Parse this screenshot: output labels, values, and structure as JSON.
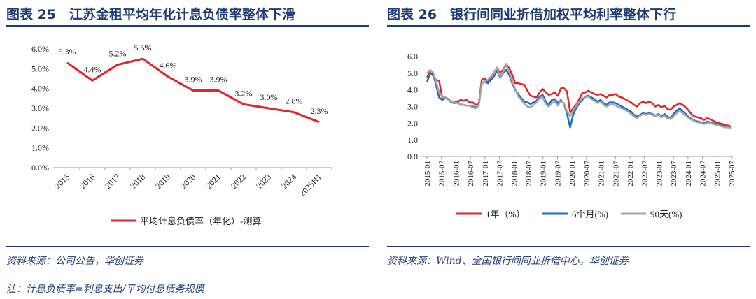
{
  "left": {
    "title": "图表 25　江苏金租平均年化计息负债率整体下滑",
    "source": "资料来源：公司公告，华创证券",
    "note": "注：计息负债率=利息支出/平均付息债务规模"
  },
  "right": {
    "title": "图表 26　银行间同业折借加权平均利率整体下行",
    "source": "资料来源：Wind、全国银行间同业折借中心，华创证券"
  },
  "colors": {
    "red": "#e3242b",
    "blue": "#1f6fc1",
    "gray": "#a5a5a5",
    "navy": "#1f3a75"
  },
  "chart_data": [
    {
      "type": "line",
      "categories": [
        "2015",
        "2016",
        "2017",
        "2018",
        "2019",
        "2020",
        "2021",
        "2022",
        "2023",
        "2024",
        "2025H1"
      ],
      "series": [
        {
          "name": "平均计息负债率（年化）-测算",
          "values": [
            5.3,
            4.4,
            5.2,
            5.5,
            4.6,
            3.9,
            3.9,
            3.2,
            3.0,
            2.8,
            2.3
          ],
          "labels": [
            "5.3%",
            "4.4%",
            "5.2%",
            "5.5%",
            "4.6%",
            "3.9%",
            "3.9%",
            "3.2%",
            "3.0%",
            "2.8%",
            "2.3%"
          ]
        }
      ],
      "ylim": [
        0,
        6
      ],
      "yticks": [
        "0.0%",
        "1.0%",
        "2.0%",
        "3.0%",
        "4.0%",
        "5.0%",
        "6.0%"
      ],
      "legend_position": "bottom",
      "grid": false
    },
    {
      "type": "line",
      "x_ticks": [
        "2015-01",
        "2015-07",
        "2016-01",
        "2016-07",
        "2017-01",
        "2017-07",
        "2018-01",
        "2018-07",
        "2019-01",
        "2019-07",
        "2020-01",
        "2020-07",
        "2021-01",
        "2021-07",
        "2022-01",
        "2022-07",
        "2023-01",
        "2023-07",
        "2024-01",
        "2024-07",
        "2025-01",
        "2025-07"
      ],
      "ylim": [
        0,
        6
      ],
      "yticks": [
        "0.0",
        "1.0",
        "2.0",
        "3.0",
        "4.0",
        "5.0",
        "6.0"
      ],
      "legend_position": "bottom",
      "grid": false,
      "series": [
        {
          "name": "1年（%）",
          "values": [
            4.75,
            5.05,
            4.85,
            4.6,
            4.55,
            3.55,
            3.55,
            3.45,
            3.3,
            3.3,
            3.25,
            3.4,
            3.35,
            3.4,
            3.25,
            3.25,
            3.1,
            3.15,
            4.6,
            4.7,
            4.5,
            4.75,
            5.05,
            5.3,
            5.05,
            5.2,
            5.55,
            5.3,
            4.9,
            4.4,
            4.4,
            4.35,
            4.3,
            3.95,
            3.65,
            3.6,
            3.55,
            3.85,
            4.05,
            3.85,
            3.7,
            3.75,
            3.85,
            3.65,
            4.1,
            4.1,
            3.9,
            2.65,
            2.9,
            3.1,
            3.45,
            3.8,
            3.85,
            3.95,
            3.85,
            3.75,
            3.7,
            3.75,
            3.65,
            3.55,
            3.7,
            3.7,
            3.75,
            3.6,
            3.55,
            3.45,
            3.35,
            3.25,
            3.1,
            3.0,
            3.2,
            3.3,
            3.2,
            3.3,
            3.2,
            3.0,
            3.1,
            2.95,
            3.05,
            2.85,
            2.8,
            3.0,
            3.1,
            3.2,
            3.1,
            2.95,
            2.75,
            2.5,
            2.4,
            2.35,
            2.3,
            2.2,
            2.3,
            2.25,
            2.15,
            2.05,
            2.0,
            1.95,
            1.9,
            1.85,
            1.8
          ]
        },
        {
          "name": "6个月(%)",
          "values": [
            4.45,
            5.0,
            4.95,
            4.3,
            3.55,
            3.4,
            3.5,
            3.45,
            3.25,
            3.2,
            3.25,
            3.1,
            3.1,
            3.05,
            3.05,
            3.0,
            2.95,
            3.05,
            4.4,
            4.5,
            4.4,
            4.6,
            4.8,
            5.15,
            4.75,
            5.0,
            5.2,
            4.9,
            4.4,
            4.0,
            3.75,
            3.5,
            3.3,
            3.25,
            3.15,
            3.25,
            3.35,
            3.6,
            3.7,
            3.3,
            3.1,
            3.4,
            3.45,
            3.2,
            3.4,
            3.15,
            2.55,
            1.75,
            2.5,
            2.9,
            3.2,
            3.4,
            3.6,
            3.65,
            3.55,
            3.45,
            3.3,
            3.4,
            3.2,
            3.1,
            3.25,
            3.25,
            3.2,
            3.1,
            3.0,
            2.9,
            2.8,
            2.7,
            2.5,
            2.4,
            2.5,
            2.6,
            2.55,
            2.6,
            2.55,
            2.45,
            2.55,
            2.4,
            2.55,
            2.4,
            2.3,
            2.55,
            2.75,
            2.9,
            2.7,
            2.55,
            2.35,
            2.25,
            2.15,
            2.1,
            2.05,
            2.0,
            2.1,
            2.05,
            2.0,
            1.95,
            1.9,
            1.85,
            1.8,
            1.75,
            1.7
          ]
        },
        {
          "name": "90天(%)",
          "values": [
            5.0,
            5.2,
            5.05,
            4.5,
            3.85,
            3.6,
            3.55,
            3.4,
            3.3,
            3.25,
            3.2,
            3.15,
            3.1,
            3.05,
            3.05,
            2.95,
            2.9,
            3.05,
            4.35,
            4.55,
            4.6,
            4.8,
            5.0,
            5.35,
            4.8,
            5.1,
            5.5,
            5.1,
            4.55,
            4.05,
            3.6,
            3.4,
            3.15,
            3.0,
            2.95,
            3.1,
            3.25,
            3.5,
            3.55,
            3.15,
            3.0,
            3.2,
            3.3,
            3.05,
            3.35,
            3.2,
            2.7,
            2.4,
            2.75,
            3.05,
            3.3,
            3.5,
            3.55,
            3.6,
            3.45,
            3.35,
            3.2,
            3.3,
            3.1,
            3.0,
            3.1,
            3.15,
            3.05,
            2.95,
            2.9,
            2.8,
            2.7,
            2.55,
            2.4,
            2.3,
            2.45,
            2.55,
            2.5,
            2.55,
            2.5,
            2.4,
            2.5,
            2.35,
            2.45,
            2.3,
            2.25,
            2.4,
            2.6,
            2.75,
            2.6,
            2.45,
            2.3,
            2.2,
            2.1,
            2.05,
            2.0,
            1.95,
            2.0,
            2.0,
            1.95,
            1.9,
            1.85,
            1.8,
            1.75,
            1.75,
            1.7
          ]
        }
      ]
    }
  ]
}
